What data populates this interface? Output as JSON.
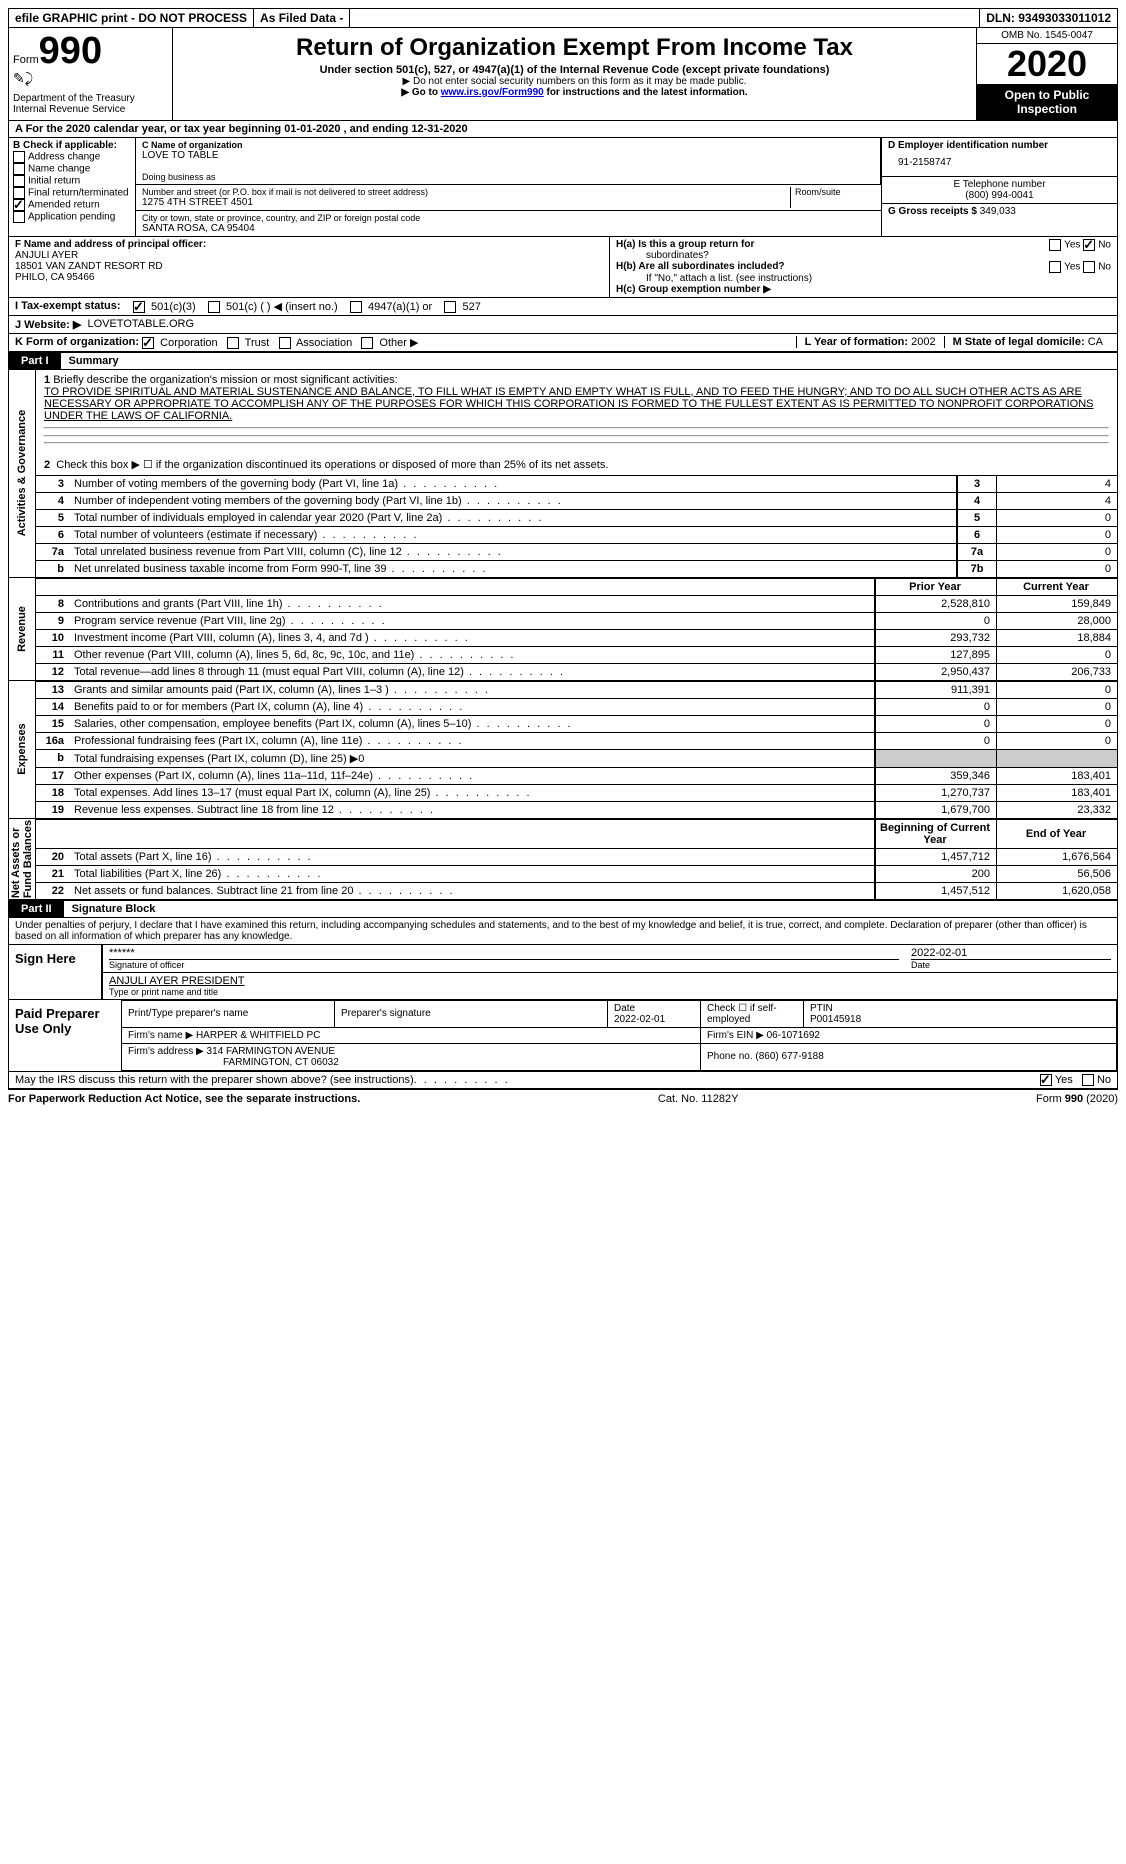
{
  "topbar": {
    "efile": "efile GRAPHIC print - DO NOT PROCESS",
    "asfiled": "As Filed Data -",
    "dln_label": "DLN:",
    "dln": "93493033011012"
  },
  "header": {
    "form_label": "Form",
    "form_num": "990",
    "dept": "Department of the Treasury\nInternal Revenue Service",
    "title": "Return of Organization Exempt From Income Tax",
    "subtitle": "Under section 501(c), 527, or 4947(a)(1) of the Internal Revenue Code (except private foundations)",
    "line2": "▶ Do not enter social security numbers on this form as it may be made public.",
    "line3_pre": "▶ Go to ",
    "line3_link": "www.irs.gov/Form990",
    "line3_post": " for instructions and the latest information.",
    "omb": "OMB No. 1545-0047",
    "year": "2020",
    "open": "Open to Public Inspection"
  },
  "row_a": "A   For the 2020 calendar year, or tax year beginning 01-01-2020   , and ending 12-31-2020",
  "col_b": {
    "label": "B Check if applicable:",
    "items": [
      "Address change",
      "Name change",
      "Initial return",
      "Final return/terminated",
      "Amended return",
      "Application pending"
    ],
    "checked_index": 4
  },
  "col_c": {
    "name_label": "C Name of organization",
    "name": "LOVE TO TABLE",
    "dba_label": "Doing business as",
    "dba": "",
    "street_label": "Number and street (or P.O. box if mail is not delivered to street address)",
    "room_label": "Room/suite",
    "street": "1275 4TH STREET 4501",
    "city_label": "City or town, state or province, country, and ZIP or foreign postal code",
    "city": "SANTA ROSA, CA  95404"
  },
  "col_d": {
    "ein_label": "D Employer identification number",
    "ein": "91-2158747",
    "tel_label": "E Telephone number",
    "tel": "(800) 994-0041",
    "gross_label": "G Gross receipts $",
    "gross": "349,033"
  },
  "section_f": {
    "label": "F  Name and address of principal officer:",
    "name": "ANJULI AYER",
    "addr1": "18501 VAN ZANDT RESORT RD",
    "addr2": "PHILO, CA  95466"
  },
  "section_h": {
    "ha": "H(a)  Is this a group return for",
    "ha2": "subordinates?",
    "hb": "H(b)  Are all subordinates included?",
    "hb_note": "If \"No,\" attach a list. (see instructions)",
    "hc": "H(c)  Group exemption number ▶",
    "yes": "Yes",
    "no": "No"
  },
  "row_i": {
    "label": "I  Tax-exempt status:",
    "opts": [
      "501(c)(3)",
      "501(c) (   ) ◀ (insert no.)",
      "4947(a)(1) or",
      "527"
    ],
    "checked_index": 0
  },
  "row_j": {
    "label": "J  Website: ▶",
    "value": "LOVETOTABLE.ORG"
  },
  "row_k": {
    "label": "K Form of organization:",
    "opts": [
      "Corporation",
      "Trust",
      "Association",
      "Other ▶"
    ],
    "checked_index": 0,
    "l_label": "L Year of formation:",
    "l_val": "2002",
    "m_label": "M State of legal domicile:",
    "m_val": "CA"
  },
  "part1": {
    "label": "Part I",
    "title": "Summary"
  },
  "mission": {
    "num": "1",
    "label": "Briefly describe the organization's mission or most significant activities:",
    "text": "TO PROVIDE SPIRITUAL AND MATERIAL SUSTENANCE AND BALANCE, TO FILL WHAT IS EMPTY AND EMPTY WHAT IS FULL, AND TO FEED THE HUNGRY; AND TO DO ALL SUCH OTHER ACTS AS ARE NECESSARY OR APPROPRIATE TO ACCOMPLISH ANY OF THE PURPOSES FOR WHICH THIS CORPORATION IS FORMED TO THE FULLEST EXTENT AS IS PERMITTED TO NONPROFIT CORPORATIONS UNDER THE LAWS OF CALIFORNIA."
  },
  "governance": {
    "line2": "Check this box ▶ ☐ if the organization discontinued its operations or disposed of more than 25% of its net assets.",
    "rows": [
      {
        "n": "3",
        "t": "Number of voting members of the governing body (Part VI, line 1a)",
        "k": "3",
        "v": "4"
      },
      {
        "n": "4",
        "t": "Number of independent voting members of the governing body (Part VI, line 1b)",
        "k": "4",
        "v": "4"
      },
      {
        "n": "5",
        "t": "Total number of individuals employed in calendar year 2020 (Part V, line 2a)",
        "k": "5",
        "v": "0"
      },
      {
        "n": "6",
        "t": "Total number of volunteers (estimate if necessary)",
        "k": "6",
        "v": "0"
      },
      {
        "n": "7a",
        "t": "Total unrelated business revenue from Part VIII, column (C), line 12",
        "k": "7a",
        "v": "0"
      },
      {
        "n": "b",
        "t": "Net unrelated business taxable income from Form 990-T, line 39",
        "k": "7b",
        "v": "0"
      }
    ]
  },
  "two_col_header": {
    "prior": "Prior Year",
    "current": "Current Year",
    "boc": "Beginning of Current Year",
    "eoy": "End of Year"
  },
  "revenue_rows": [
    {
      "n": "8",
      "t": "Contributions and grants (Part VIII, line 1h)",
      "p": "2,528,810",
      "c": "159,849"
    },
    {
      "n": "9",
      "t": "Program service revenue (Part VIII, line 2g)",
      "p": "0",
      "c": "28,000"
    },
    {
      "n": "10",
      "t": "Investment income (Part VIII, column (A), lines 3, 4, and 7d )",
      "p": "293,732",
      "c": "18,884"
    },
    {
      "n": "11",
      "t": "Other revenue (Part VIII, column (A), lines 5, 6d, 8c, 9c, 10c, and 11e)",
      "p": "127,895",
      "c": "0"
    },
    {
      "n": "12",
      "t": "Total revenue—add lines 8 through 11 (must equal Part VIII, column (A), line 12)",
      "p": "2,950,437",
      "c": "206,733"
    }
  ],
  "expense_rows": [
    {
      "n": "13",
      "t": "Grants and similar amounts paid (Part IX, column (A), lines 1–3 )",
      "p": "911,391",
      "c": "0"
    },
    {
      "n": "14",
      "t": "Benefits paid to or for members (Part IX, column (A), line 4)",
      "p": "0",
      "c": "0"
    },
    {
      "n": "15",
      "t": "Salaries, other compensation, employee benefits (Part IX, column (A), lines 5–10)",
      "p": "0",
      "c": "0"
    },
    {
      "n": "16a",
      "t": "Professional fundraising fees (Part IX, column (A), line 11e)",
      "p": "0",
      "c": "0"
    },
    {
      "n": "b",
      "t": "Total fundraising expenses (Part IX, column (D), line 25) ▶0",
      "p": "",
      "c": "",
      "shade": true
    },
    {
      "n": "17",
      "t": "Other expenses (Part IX, column (A), lines 11a–11d, 11f–24e)",
      "p": "359,346",
      "c": "183,401"
    },
    {
      "n": "18",
      "t": "Total expenses. Add lines 13–17 (must equal Part IX, column (A), line 25)",
      "p": "1,270,737",
      "c": "183,401"
    },
    {
      "n": "19",
      "t": "Revenue less expenses. Subtract line 18 from line 12",
      "p": "1,679,700",
      "c": "23,332"
    }
  ],
  "netassets_rows": [
    {
      "n": "20",
      "t": "Total assets (Part X, line 16)",
      "p": "1,457,712",
      "c": "1,676,564"
    },
    {
      "n": "21",
      "t": "Total liabilities (Part X, line 26)",
      "p": "200",
      "c": "56,506"
    },
    {
      "n": "22",
      "t": "Net assets or fund balances. Subtract line 21 from line 20",
      "p": "1,457,512",
      "c": "1,620,058"
    }
  ],
  "vlabels": {
    "gov": "Activities & Governance",
    "rev": "Revenue",
    "exp": "Expenses",
    "net": "Net Assets or\nFund Balances"
  },
  "part2": {
    "label": "Part II",
    "title": "Signature Block"
  },
  "sig": {
    "penalties": "Under penalties of perjury, I declare that I have examined this return, including accompanying schedules and statements, and to the best of my knowledge and belief, it is true, correct, and complete. Declaration of preparer (other than officer) is based on all information of which preparer has any knowledge.",
    "sign_here": "Sign Here",
    "stars": "******",
    "sig_officer": "Signature of officer",
    "date": "2022-02-01",
    "date_label": "Date",
    "name_title": "ANJULI AYER  PRESIDENT",
    "type_label": "Type or print name and title"
  },
  "prep": {
    "label": "Paid Preparer Use Only",
    "h1": "Print/Type preparer's name",
    "h2": "Preparer's signature",
    "h3": "Date",
    "h3v": "2022-02-01",
    "h4": "Check ☐ if self-employed",
    "h5": "PTIN",
    "ptin": "P00145918",
    "firm_name_label": "Firm's name      ▶",
    "firm_name": "HARPER & WHITFIELD PC",
    "firm_ein_label": "Firm's EIN ▶",
    "firm_ein": "06-1071692",
    "firm_addr_label": "Firm's address ▶",
    "firm_addr1": "314 FARMINGTON AVENUE",
    "firm_addr2": "FARMINGTON, CT  06032",
    "phone_label": "Phone no.",
    "phone": "(860) 677-9188"
  },
  "discuss": {
    "text": "May the IRS discuss this return with the preparer shown above? (see instructions)",
    "yes": "Yes",
    "no": "No"
  },
  "footer": {
    "left": "For Paperwork Reduction Act Notice, see the separate instructions.",
    "mid": "Cat. No. 11282Y",
    "right_pre": "Form ",
    "right_bold": "990",
    "right_post": " (2020)"
  }
}
